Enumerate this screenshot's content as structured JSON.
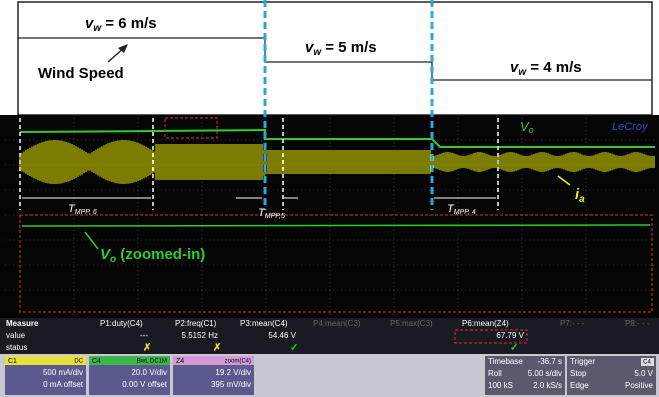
{
  "wind": {
    "segments": [
      {
        "symbol": "v",
        "subscript": "w",
        "value": "= 6 m/s"
      },
      {
        "symbol": "v",
        "subscript": "w",
        "value": "= 5 m/s"
      },
      {
        "symbol": "v",
        "subscript": "w",
        "value": "= 4 m/s"
      }
    ],
    "label": "Wind Speed"
  },
  "scope": {
    "brand": "LeCroy",
    "vo": {
      "symbol": "V",
      "subscript": "o"
    },
    "ia": {
      "symbol": "i",
      "subscript": "a"
    },
    "periods": [
      {
        "symbol": "T",
        "subscript": "MPP, 6"
      },
      {
        "symbol": "T",
        "subscript": "MPP,5"
      },
      {
        "symbol": "T",
        "subscript": "MPP, 4"
      }
    ],
    "zoom": {
      "symbol": "V",
      "subscript": "o",
      "text": "(zoomed-in)"
    }
  },
  "measure": {
    "header": [
      "Measure",
      "P1:duty(C4)",
      "P2:freq(C1)",
      "P3:mean(C4)",
      "P4:mean(C3)",
      "P5:max(C3)",
      "P6:mean(Z4)",
      "P7:- - -",
      "P8:- - -"
    ],
    "value_row": {
      "label": "value",
      "P1": "---",
      "P2": "5.5152 Hz",
      "P3": "54.46 V",
      "P6": "67.79 V"
    },
    "status_row": {
      "label": "status"
    }
  },
  "channels": [
    {
      "name": "C1",
      "tag": "DC",
      "lines": [
        "500 mA/div",
        "0 mA offset"
      ]
    },
    {
      "name": "C4",
      "tag": "BwL DC1M",
      "lines": [
        "20.0 V/div",
        "0.00 V offset"
      ]
    },
    {
      "name": "Z4",
      "tag": "zoom(C4)",
      "lines": [
        "19.2 V/div",
        "395 mV/div"
      ]
    }
  ],
  "timebase": {
    "name": "Timebase",
    "value": "-36.7 s",
    "rows": [
      [
        "Roll",
        "5.00 s/div"
      ],
      [
        "100 kS",
        "2.0 kS/s"
      ]
    ]
  },
  "trigger": {
    "name": "Trigger",
    "tag": "C4",
    "rows": [
      [
        "Stop",
        "5.0 V"
      ],
      [
        "Edge",
        "Positive"
      ]
    ]
  }
}
